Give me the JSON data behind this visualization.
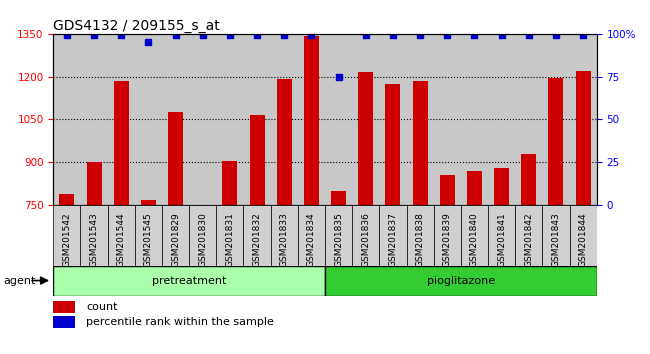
{
  "title": "GDS4132 / 209155_s_at",
  "categories": [
    "GSM201542",
    "GSM201543",
    "GSM201544",
    "GSM201545",
    "GSM201829",
    "GSM201830",
    "GSM201831",
    "GSM201832",
    "GSM201833",
    "GSM201834",
    "GSM201835",
    "GSM201836",
    "GSM201837",
    "GSM201838",
    "GSM201839",
    "GSM201840",
    "GSM201841",
    "GSM201842",
    "GSM201843",
    "GSM201844"
  ],
  "count_values": [
    790,
    900,
    1185,
    770,
    1075,
    750,
    905,
    1065,
    1190,
    1340,
    800,
    1215,
    1175,
    1185,
    855,
    870,
    880,
    930,
    1195,
    1220
  ],
  "percentile_values": [
    99,
    99,
    99,
    95,
    99,
    99,
    99,
    99,
    99,
    99,
    75,
    99,
    99,
    99,
    99,
    99,
    99,
    99,
    99,
    99
  ],
  "bar_color": "#cc0000",
  "dot_color": "#0000cc",
  "ylim_left": [
    750,
    1350
  ],
  "ylim_right": [
    0,
    100
  ],
  "yticks_left": [
    750,
    900,
    1050,
    1200,
    1350
  ],
  "yticks_right": [
    0,
    25,
    50,
    75,
    100
  ],
  "ylabel_right_labels": [
    "0",
    "25",
    "50",
    "75",
    "100%"
  ],
  "pretreatment_count": 10,
  "pioglitazone_count": 10,
  "pretreatment_label": "pretreatment",
  "pioglitazone_label": "pioglitazone",
  "agent_label": "agent",
  "legend_count_label": "count",
  "legend_percentile_label": "percentile rank within the sample",
  "bg_color": "#c8c8c8",
  "tick_label_bg": "#d0d0d0",
  "green_light": "#aaffaa",
  "green_dark": "#33cc33",
  "title_fontsize": 10,
  "axis_tick_fontsize": 7.5,
  "xtick_fontsize": 6.5,
  "bar_width": 0.55,
  "dot_size": 22
}
